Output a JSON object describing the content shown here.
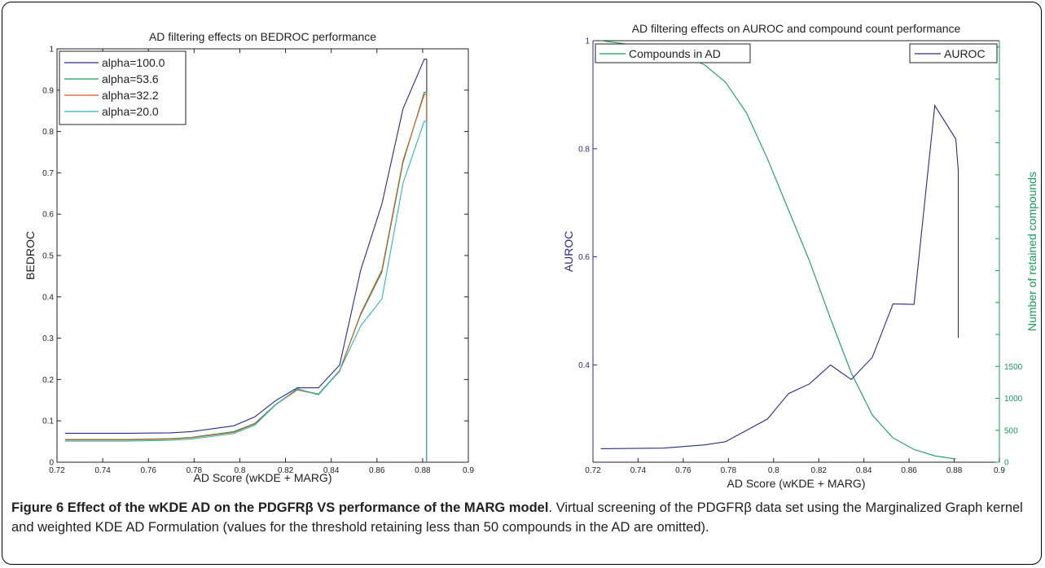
{
  "caption": {
    "title": "Figure 6 Effect of the wKDE AD on the PDGFRβ VS performance of the MARG model",
    "text": ". Virtual screening of the PDGFRβ data set using the Marginalized Graph kernel and weighted KDE AD Formulation (values for the threshold retaining less than 50 compounds in the AD are omitted)."
  },
  "chart_data": [
    {
      "type": "line",
      "title": "AD filtering effects on BEDROC performance",
      "xlabel": "AD Score (wKDE + MARG)",
      "ylabel": "BEDROC",
      "xlim": [
        0.72,
        0.9
      ],
      "ylim": [
        0,
        1
      ],
      "xticks": [
        0.72,
        0.74,
        0.76,
        0.78,
        0.8,
        0.82,
        0.84,
        0.86,
        0.88,
        0.9
      ],
      "yticks": [
        0,
        0.1,
        0.2,
        0.3,
        0.4,
        0.5,
        0.6,
        0.7,
        0.8,
        0.9,
        1
      ],
      "legend_position": "top-left",
      "x": [
        0.7235,
        0.7512,
        0.7695,
        0.7787,
        0.7973,
        0.8066,
        0.8159,
        0.8252,
        0.8344,
        0.8437,
        0.8529,
        0.8622,
        0.8714,
        0.8807,
        0.8818,
        0.8818
      ],
      "series": [
        {
          "name": "alpha=100.0",
          "color": "#2b2b86",
          "values": [
            0.07,
            0.07,
            0.071,
            0.074,
            0.088,
            0.11,
            0.15,
            0.18,
            0.18,
            0.235,
            0.465,
            0.625,
            0.855,
            0.975,
            0.975,
            0.0
          ]
        },
        {
          "name": "alpha=53.6",
          "color": "#1a9a5a",
          "values": [
            0.055,
            0.055,
            0.057,
            0.06,
            0.074,
            0.094,
            0.141,
            0.176,
            0.165,
            0.222,
            0.357,
            0.46,
            0.725,
            0.895,
            0.895,
            0.0
          ]
        },
        {
          "name": "alpha=32.2",
          "color": "#d05a28",
          "values": [
            0.054,
            0.054,
            0.056,
            0.059,
            0.072,
            0.093,
            0.14,
            0.175,
            0.164,
            0.22,
            0.36,
            0.465,
            0.73,
            0.89,
            0.89,
            0.0
          ]
        },
        {
          "name": "alpha=20.0",
          "color": "#2fb5b0",
          "values": [
            0.051,
            0.051,
            0.053,
            0.056,
            0.069,
            0.09,
            0.14,
            0.178,
            0.163,
            0.222,
            0.33,
            0.395,
            0.675,
            0.825,
            0.825,
            0.0
          ]
        }
      ]
    },
    {
      "type": "line",
      "title": "AD filtering effects on AUROC and compound count performance",
      "xlabel": "AD Score (wKDE + MARG)",
      "ylabel": "AUROC",
      "y2label": "Number of retained compounds",
      "xlim": [
        0.72,
        0.9
      ],
      "ylim": [
        0.22,
        1.0
      ],
      "y2lim": [
        0,
        6600
      ],
      "xticks": [
        0.72,
        0.74,
        0.76,
        0.78,
        0.8,
        0.82,
        0.84,
        0.86,
        0.88,
        0.9
      ],
      "yticks": [
        0.4,
        0.6,
        0.8,
        1
      ],
      "y2ticks": [
        0,
        500,
        1000,
        1500
      ],
      "series": [
        {
          "name": "AUROC",
          "axis": "left",
          "color": "#2b2b86",
          "legend_position": "top-right",
          "x": [
            0.7235,
            0.7512,
            0.7695,
            0.7787,
            0.7973,
            0.8066,
            0.8159,
            0.8252,
            0.8344,
            0.8437,
            0.8529,
            0.8622,
            0.8714,
            0.8807,
            0.8818,
            0.8818
          ],
          "values": [
            0.245,
            0.246,
            0.252,
            0.258,
            0.3,
            0.347,
            0.365,
            0.4,
            0.373,
            0.414,
            0.513,
            0.512,
            0.88,
            0.818,
            0.76,
            0.45
          ]
        },
        {
          "name": "Compounds in AD",
          "axis": "right",
          "color": "#1a9a5a",
          "legend_position": "top-left",
          "x": [
            0.7235,
            0.7512,
            0.7604,
            0.7695,
            0.7787,
            0.788,
            0.7973,
            0.8066,
            0.8159,
            0.8252,
            0.8344,
            0.8437,
            0.8529,
            0.8622,
            0.8714,
            0.8807
          ],
          "values": [
            6600,
            6470,
            6370,
            6220,
            5950,
            5470,
            4750,
            3950,
            3150,
            2250,
            1400,
            740,
            380,
            200,
            100,
            50
          ]
        }
      ]
    }
  ]
}
